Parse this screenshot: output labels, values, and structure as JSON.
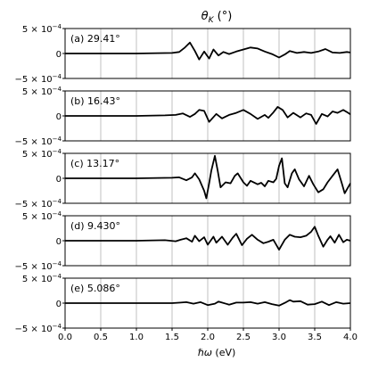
{
  "figure": {
    "title": "θ",
    "title_sub": "K",
    "title_unit": " (°)",
    "xlabel_pre": "ℏ",
    "xlabel_omega": "ω",
    "xlabel_unit": " (eV)"
  },
  "chart_data": {
    "type": "line",
    "x_range": [
      0.0,
      4.0
    ],
    "x_ticks": [
      "0.0",
      "0.5",
      "1.0",
      "1.5",
      "2.0",
      "2.5",
      "3.0",
      "3.5",
      "4.0"
    ],
    "x_tick_values": [
      0.0,
      0.5,
      1.0,
      1.5,
      2.0,
      2.5,
      3.0,
      3.5,
      4.0
    ],
    "grid_x": true,
    "line_color": "#000000",
    "y_tick_labels": {
      "top": "5 × 10",
      "zero": "0",
      "bottom": "−5 × 10",
      "exponent": "−4"
    },
    "y_range": [
      -0.0005,
      0.0005
    ],
    "panels": [
      {
        "label": "(a) 29.41°",
        "points": [
          [
            0,
            0
          ],
          [
            1,
            0
          ],
          [
            1.5,
            1e-05
          ],
          [
            1.6,
            3e-05
          ],
          [
            1.68,
            0.00012
          ],
          [
            1.75,
            0.00022
          ],
          [
            1.82,
            5e-05
          ],
          [
            1.88,
            -0.00012
          ],
          [
            1.95,
            4e-05
          ],
          [
            2.02,
            -0.0001
          ],
          [
            2.08,
            8e-05
          ],
          [
            2.15,
            -4e-05
          ],
          [
            2.22,
            3e-05
          ],
          [
            2.3,
            -1e-05
          ],
          [
            2.4,
            4e-05
          ],
          [
            2.5,
            8e-05
          ],
          [
            2.6,
            0.00012
          ],
          [
            2.7,
            0.0001
          ],
          [
            2.8,
            4e-05
          ],
          [
            2.9,
            -1e-05
          ],
          [
            3.0,
            -8e-05
          ],
          [
            3.08,
            -2e-05
          ],
          [
            3.15,
            5e-05
          ],
          [
            3.25,
            1e-05
          ],
          [
            3.35,
            3e-05
          ],
          [
            3.45,
            1e-05
          ],
          [
            3.55,
            4e-05
          ],
          [
            3.65,
            9e-05
          ],
          [
            3.75,
            2e-05
          ],
          [
            3.85,
            1e-05
          ],
          [
            3.95,
            3e-05
          ],
          [
            4.0,
            2e-05
          ]
        ]
      },
      {
        "label": "(b) 16.43°",
        "points": [
          [
            0,
            0
          ],
          [
            1,
            0
          ],
          [
            1.4,
            1e-05
          ],
          [
            1.55,
            2e-05
          ],
          [
            1.65,
            5e-05
          ],
          [
            1.75,
            -2e-05
          ],
          [
            1.82,
            4e-05
          ],
          [
            1.88,
            0.00012
          ],
          [
            1.95,
            0.0001
          ],
          [
            2.02,
            -0.00012
          ],
          [
            2.12,
            4e-05
          ],
          [
            2.2,
            -5e-05
          ],
          [
            2.3,
            2e-05
          ],
          [
            2.4,
            6e-05
          ],
          [
            2.5,
            0.00012
          ],
          [
            2.6,
            4e-05
          ],
          [
            2.7,
            -6e-05
          ],
          [
            2.8,
            2e-05
          ],
          [
            2.85,
            -4e-05
          ],
          [
            2.92,
            7e-05
          ],
          [
            2.98,
            0.00018
          ],
          [
            3.05,
            0.00012
          ],
          [
            3.12,
            -3e-05
          ],
          [
            3.2,
            6e-05
          ],
          [
            3.3,
            -3e-05
          ],
          [
            3.38,
            5e-05
          ],
          [
            3.45,
            2e-05
          ],
          [
            3.52,
            -0.00016
          ],
          [
            3.6,
            4e-05
          ],
          [
            3.68,
            -1e-05
          ],
          [
            3.75,
            9e-05
          ],
          [
            3.82,
            6e-05
          ],
          [
            3.9,
            0.00012
          ],
          [
            3.96,
            7e-05
          ],
          [
            4.0,
            3e-05
          ]
        ]
      },
      {
        "label": "(c) 13.17°",
        "points": [
          [
            0,
            0
          ],
          [
            1,
            0
          ],
          [
            1.5,
            1e-05
          ],
          [
            1.6,
            2e-05
          ],
          [
            1.7,
            -4e-05
          ],
          [
            1.78,
            2e-05
          ],
          [
            1.82,
            0.0001
          ],
          [
            1.88,
            -2e-05
          ],
          [
            1.95,
            -0.00025
          ],
          [
            1.98,
            -0.0004
          ],
          [
            2.02,
            -0.0001
          ],
          [
            2.05,
            0.00015
          ],
          [
            2.1,
            0.00045
          ],
          [
            2.14,
            0.00015
          ],
          [
            2.18,
            -0.00018
          ],
          [
            2.25,
            -8e-05
          ],
          [
            2.32,
            -0.0001
          ],
          [
            2.38,
            5e-05
          ],
          [
            2.42,
            0.0001
          ],
          [
            2.5,
            -8e-05
          ],
          [
            2.55,
            -0.00015
          ],
          [
            2.6,
            -5e-05
          ],
          [
            2.7,
            -0.00012
          ],
          [
            2.75,
            -9e-05
          ],
          [
            2.8,
            -0.00016
          ],
          [
            2.85,
            -5e-05
          ],
          [
            2.92,
            -8e-05
          ],
          [
            2.96,
            -1e-05
          ],
          [
            3.0,
            0.00025
          ],
          [
            3.04,
            0.0004
          ],
          [
            3.08,
            -0.0001
          ],
          [
            3.12,
            -0.00018
          ],
          [
            3.18,
            0.0001
          ],
          [
            3.22,
            0.00018
          ],
          [
            3.28,
            -2e-05
          ],
          [
            3.35,
            -0.00016
          ],
          [
            3.42,
            5e-05
          ],
          [
            3.48,
            -0.00012
          ],
          [
            3.55,
            -0.00028
          ],
          [
            3.62,
            -0.00022
          ],
          [
            3.68,
            -8e-05
          ],
          [
            3.75,
            5e-05
          ],
          [
            3.82,
            0.00018
          ],
          [
            3.88,
            -0.0001
          ],
          [
            3.92,
            -0.0003
          ],
          [
            3.96,
            -0.0002
          ],
          [
            4.0,
            -0.0001
          ]
        ]
      },
      {
        "label": "(d) 9.430°",
        "points": [
          [
            0,
            0
          ],
          [
            1,
            0
          ],
          [
            1.4,
            1e-05
          ],
          [
            1.55,
            -1e-05
          ],
          [
            1.62,
            2e-05
          ],
          [
            1.7,
            5e-05
          ],
          [
            1.78,
            -2e-05
          ],
          [
            1.82,
            0.0001
          ],
          [
            1.88,
            -1e-05
          ],
          [
            1.95,
            7e-05
          ],
          [
            2.0,
            -8e-05
          ],
          [
            2.08,
            8e-05
          ],
          [
            2.12,
            -4e-05
          ],
          [
            2.2,
            8e-05
          ],
          [
            2.28,
            -8e-05
          ],
          [
            2.35,
            6e-05
          ],
          [
            2.4,
            0.00014
          ],
          [
            2.48,
            -9e-05
          ],
          [
            2.55,
            4e-05
          ],
          [
            2.62,
            0.00012
          ],
          [
            2.7,
            2e-05
          ],
          [
            2.78,
            -5e-05
          ],
          [
            2.85,
            -2e-05
          ],
          [
            2.92,
            2e-05
          ],
          [
            3.0,
            -0.00018
          ],
          [
            3.08,
            2e-05
          ],
          [
            3.15,
            0.00012
          ],
          [
            3.22,
            8e-05
          ],
          [
            3.3,
            7e-05
          ],
          [
            3.38,
            0.0001
          ],
          [
            3.45,
            0.00018
          ],
          [
            3.5,
            0.00028
          ],
          [
            3.55,
            0.0001
          ],
          [
            3.62,
            -0.00012
          ],
          [
            3.68,
            2e-05
          ],
          [
            3.72,
            9e-05
          ],
          [
            3.78,
            -4e-05
          ],
          [
            3.84,
            0.00012
          ],
          [
            3.9,
            -3e-05
          ],
          [
            3.95,
            2e-05
          ],
          [
            4.0,
            0
          ]
        ]
      },
      {
        "label": "(e) 5.086°",
        "points": [
          [
            0,
            0
          ],
          [
            1,
            0
          ],
          [
            1.5,
            0
          ],
          [
            1.62,
            1e-05
          ],
          [
            1.7,
            2e-05
          ],
          [
            1.8,
            -1e-05
          ],
          [
            1.9,
            2e-05
          ],
          [
            2.0,
            -4e-05
          ],
          [
            2.1,
            -1e-05
          ],
          [
            2.15,
            3e-05
          ],
          [
            2.2,
            1e-05
          ],
          [
            2.3,
            -3e-05
          ],
          [
            2.4,
            1e-05
          ],
          [
            2.5,
            1e-05
          ],
          [
            2.6,
            2e-05
          ],
          [
            2.7,
            -1e-05
          ],
          [
            2.8,
            2e-05
          ],
          [
            2.9,
            -2e-05
          ],
          [
            3.0,
            -5e-05
          ],
          [
            3.1,
            2e-05
          ],
          [
            3.15,
            6e-05
          ],
          [
            3.2,
            3e-05
          ],
          [
            3.3,
            4e-05
          ],
          [
            3.4,
            -3e-05
          ],
          [
            3.5,
            -2e-05
          ],
          [
            3.6,
            3e-05
          ],
          [
            3.7,
            -4e-05
          ],
          [
            3.8,
            2e-05
          ],
          [
            3.9,
            -1e-05
          ],
          [
            4.0,
            0
          ]
        ]
      }
    ]
  }
}
